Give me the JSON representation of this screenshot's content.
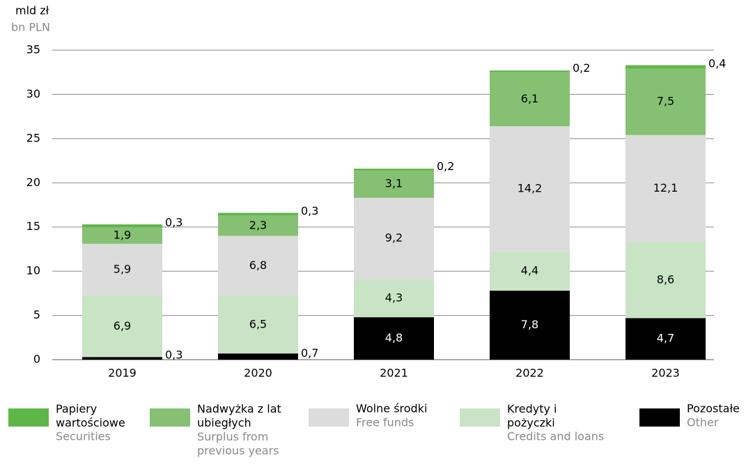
{
  "chart_data": {
    "type": "stacked_bar",
    "y_label": "mld zł",
    "y_label_en": "bn PLN",
    "categories": [
      "2019",
      "2020",
      "2021",
      "2022",
      "2023"
    ],
    "ylim": [
      0,
      35
    ],
    "yticks": [
      0,
      5,
      10,
      15,
      20,
      25,
      30,
      35
    ],
    "grid": true,
    "series": [
      {
        "name": "Pozostałe",
        "name_en": "Other",
        "color": "#000000",
        "values": [
          0.3,
          0.7,
          4.8,
          7.8,
          4.7
        ],
        "value_labels": [
          "0,3",
          "0,7",
          "4,8",
          "7,8",
          "4,7"
        ]
      },
      {
        "name": "Kredyty i pożyczki",
        "name_en": "Credits and loans",
        "color": "#c8e4c4",
        "values": [
          6.9,
          6.5,
          4.3,
          4.4,
          8.6
        ],
        "value_labels": [
          "6,9",
          "6,5",
          "4,3",
          "4,4",
          "8,6"
        ]
      },
      {
        "name": "Wolne środki",
        "name_en": "Free funds",
        "color": "#dcdcdc",
        "values": [
          5.9,
          6.8,
          9.2,
          14.2,
          12.1
        ],
        "value_labels": [
          "5,9",
          "6,8",
          "9,2",
          "14,2",
          "12,1"
        ]
      },
      {
        "name": "Nadwyżka z lat ubiegłych",
        "name_en": "Surplus from previous years",
        "color": "#86c173",
        "values": [
          1.9,
          2.3,
          3.1,
          6.1,
          7.5
        ],
        "value_labels": [
          "1,9",
          "2,3",
          "3,1",
          "6,1",
          "7,5"
        ]
      },
      {
        "name": "Papiery wartościowe",
        "name_en": "Securities",
        "color": "#5fb648",
        "values": [
          0.3,
          0.3,
          0.2,
          0.2,
          0.4
        ],
        "value_labels": [
          "0,3",
          "0,3",
          "0,2",
          "0,2",
          "0,4"
        ]
      }
    ]
  }
}
